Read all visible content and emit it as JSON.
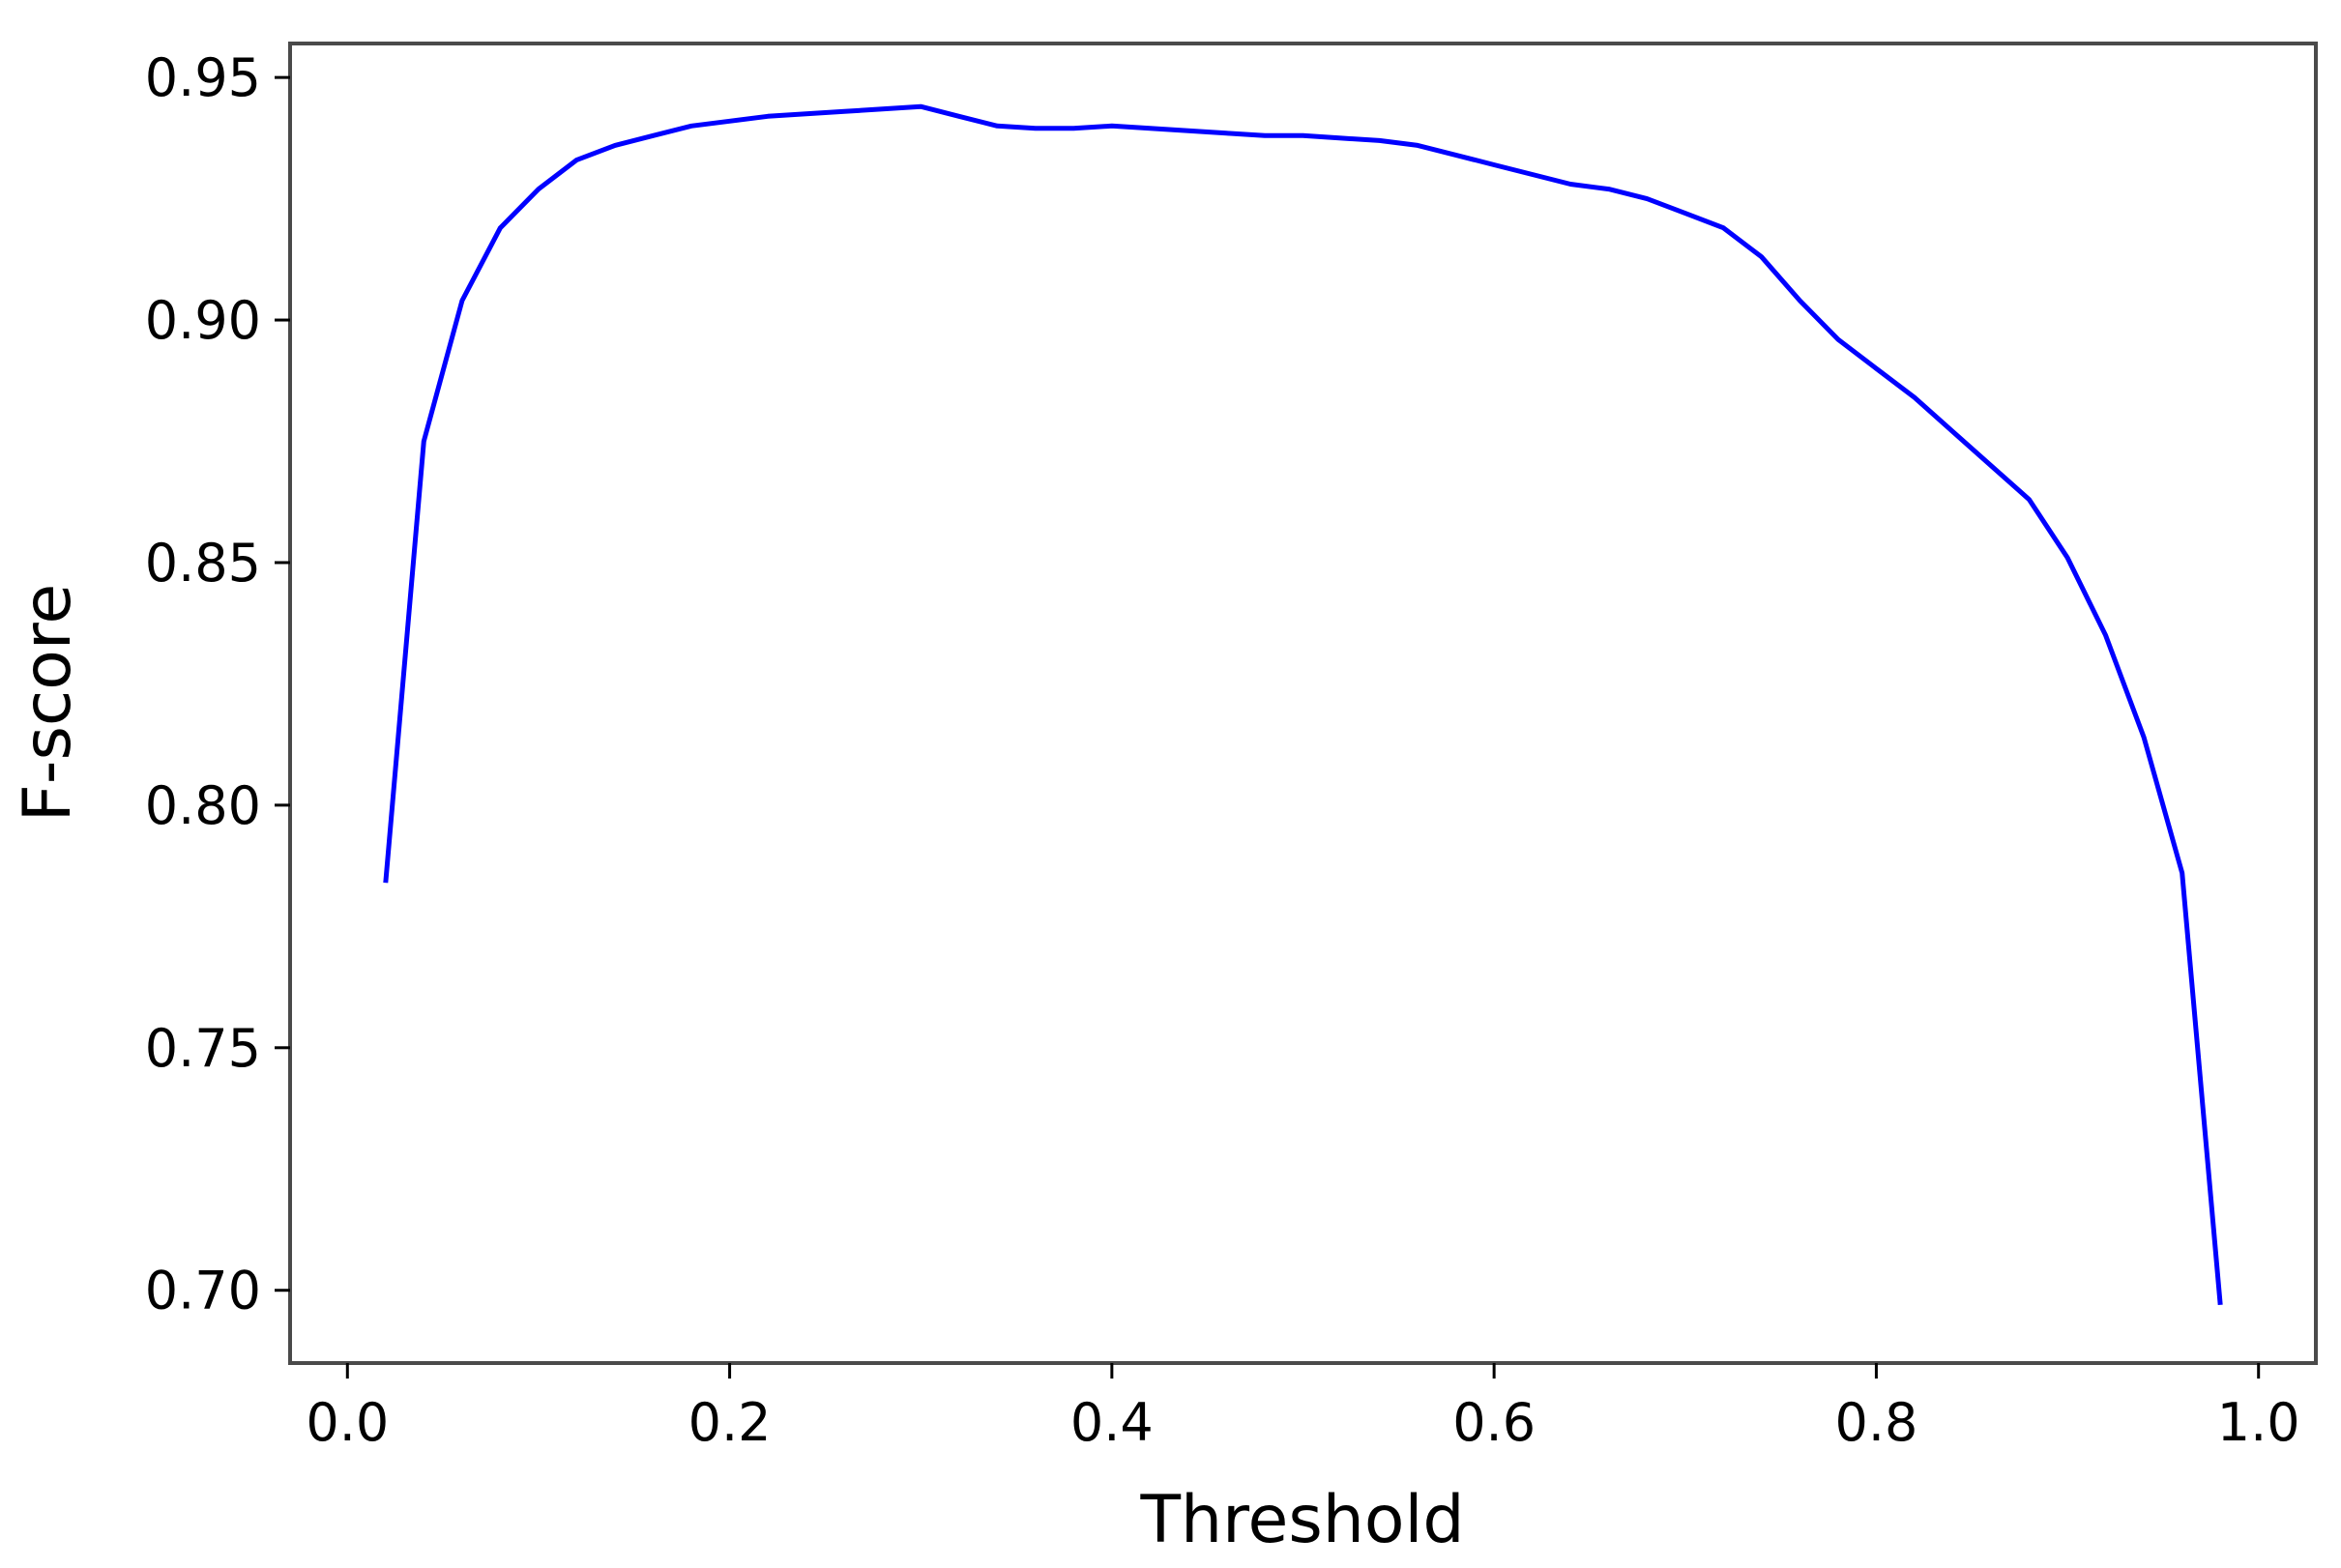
{
  "chart_data": {
    "type": "line",
    "title": "",
    "xlabel": "Threshold",
    "ylabel": "F-score",
    "xlim": [
      -0.03,
      1.03
    ],
    "ylim": [
      0.685,
      0.957
    ],
    "xticks": [
      0.0,
      0.2,
      0.4,
      0.6,
      0.8,
      1.0
    ],
    "xtick_labels": [
      "0.0",
      "0.2",
      "0.4",
      "0.6",
      "0.8",
      "1.0"
    ],
    "yticks": [
      0.7,
      0.75,
      0.8,
      0.85,
      0.9,
      0.95
    ],
    "ytick_labels": [
      "0.70",
      "0.75",
      "0.80",
      "0.85",
      "0.90",
      "0.95"
    ],
    "grid": false,
    "line_color": "#0000ff",
    "series": [
      {
        "x": [
          0.02,
          0.04,
          0.06,
          0.08,
          0.1,
          0.12,
          0.14,
          0.16,
          0.18,
          0.2,
          0.22,
          0.24,
          0.26,
          0.28,
          0.3,
          0.32,
          0.34,
          0.36,
          0.38,
          0.4,
          0.42,
          0.44,
          0.46,
          0.48,
          0.5,
          0.52,
          0.54,
          0.56,
          0.58,
          0.6,
          0.62,
          0.64,
          0.66,
          0.68,
          0.7,
          0.72,
          0.74,
          0.76,
          0.78,
          0.8,
          0.82,
          0.84,
          0.86,
          0.88,
          0.9,
          0.92,
          0.94,
          0.96,
          0.98
        ],
        "y": [
          0.784,
          0.875,
          0.904,
          0.919,
          0.927,
          0.933,
          0.936,
          0.938,
          0.94,
          0.941,
          0.942,
          0.9425,
          0.943,
          0.9435,
          0.944,
          0.942,
          0.94,
          0.9395,
          0.9395,
          0.94,
          0.9395,
          0.939,
          0.9385,
          0.938,
          0.938,
          0.9375,
          0.937,
          0.936,
          0.934,
          0.932,
          0.93,
          0.928,
          0.927,
          0.925,
          0.922,
          0.919,
          0.913,
          0.904,
          0.896,
          0.89,
          0.884,
          0.877,
          0.87,
          0.863,
          0.851,
          0.835,
          0.814,
          0.786,
          0.697
        ]
      }
    ]
  }
}
